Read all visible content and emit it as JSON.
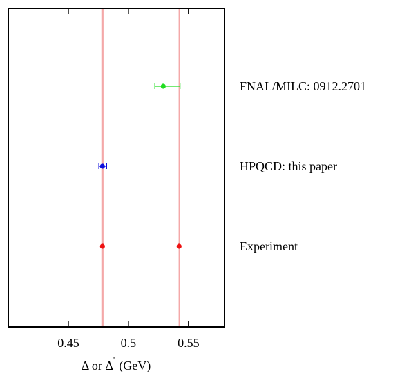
{
  "chart_data": {
    "type": "scatter",
    "title": "",
    "xlabel_main": "Δ or Δ",
    "xlabel_prime": "'",
    "xlabel_unit": "(GeV)",
    "ylabel": "",
    "xlim": [
      0.4,
      0.58
    ],
    "xticks": [
      0.45,
      0.5,
      0.55
    ],
    "xtick_labels": [
      "0.45",
      "0.5",
      "0.55"
    ],
    "grid": false,
    "bands": [
      {
        "center": 0.4784,
        "half_width": 0.0009,
        "color": "#f4a8a8"
      },
      {
        "center": 0.5422,
        "half_width": 0.0004,
        "color": "#f4a8a8"
      }
    ],
    "rows": [
      {
        "label": "FNAL/MILC: 0912.2701",
        "color": "#22dd22",
        "points": [
          {
            "x": 0.529,
            "xerr_low": 0.007,
            "xerr_high": 0.014
          }
        ]
      },
      {
        "label": "HPQCD: this paper",
        "color": "#1010dd",
        "points": [
          {
            "x": 0.4784,
            "xerr_low": 0.003,
            "xerr_high": 0.0035
          }
        ]
      },
      {
        "label": "Experiment",
        "color": "#ee1111",
        "points": [
          {
            "x": 0.4784,
            "xerr_low": 0,
            "xerr_high": 0
          },
          {
            "x": 0.5422,
            "xerr_low": 0,
            "xerr_high": 0
          }
        ]
      }
    ]
  }
}
